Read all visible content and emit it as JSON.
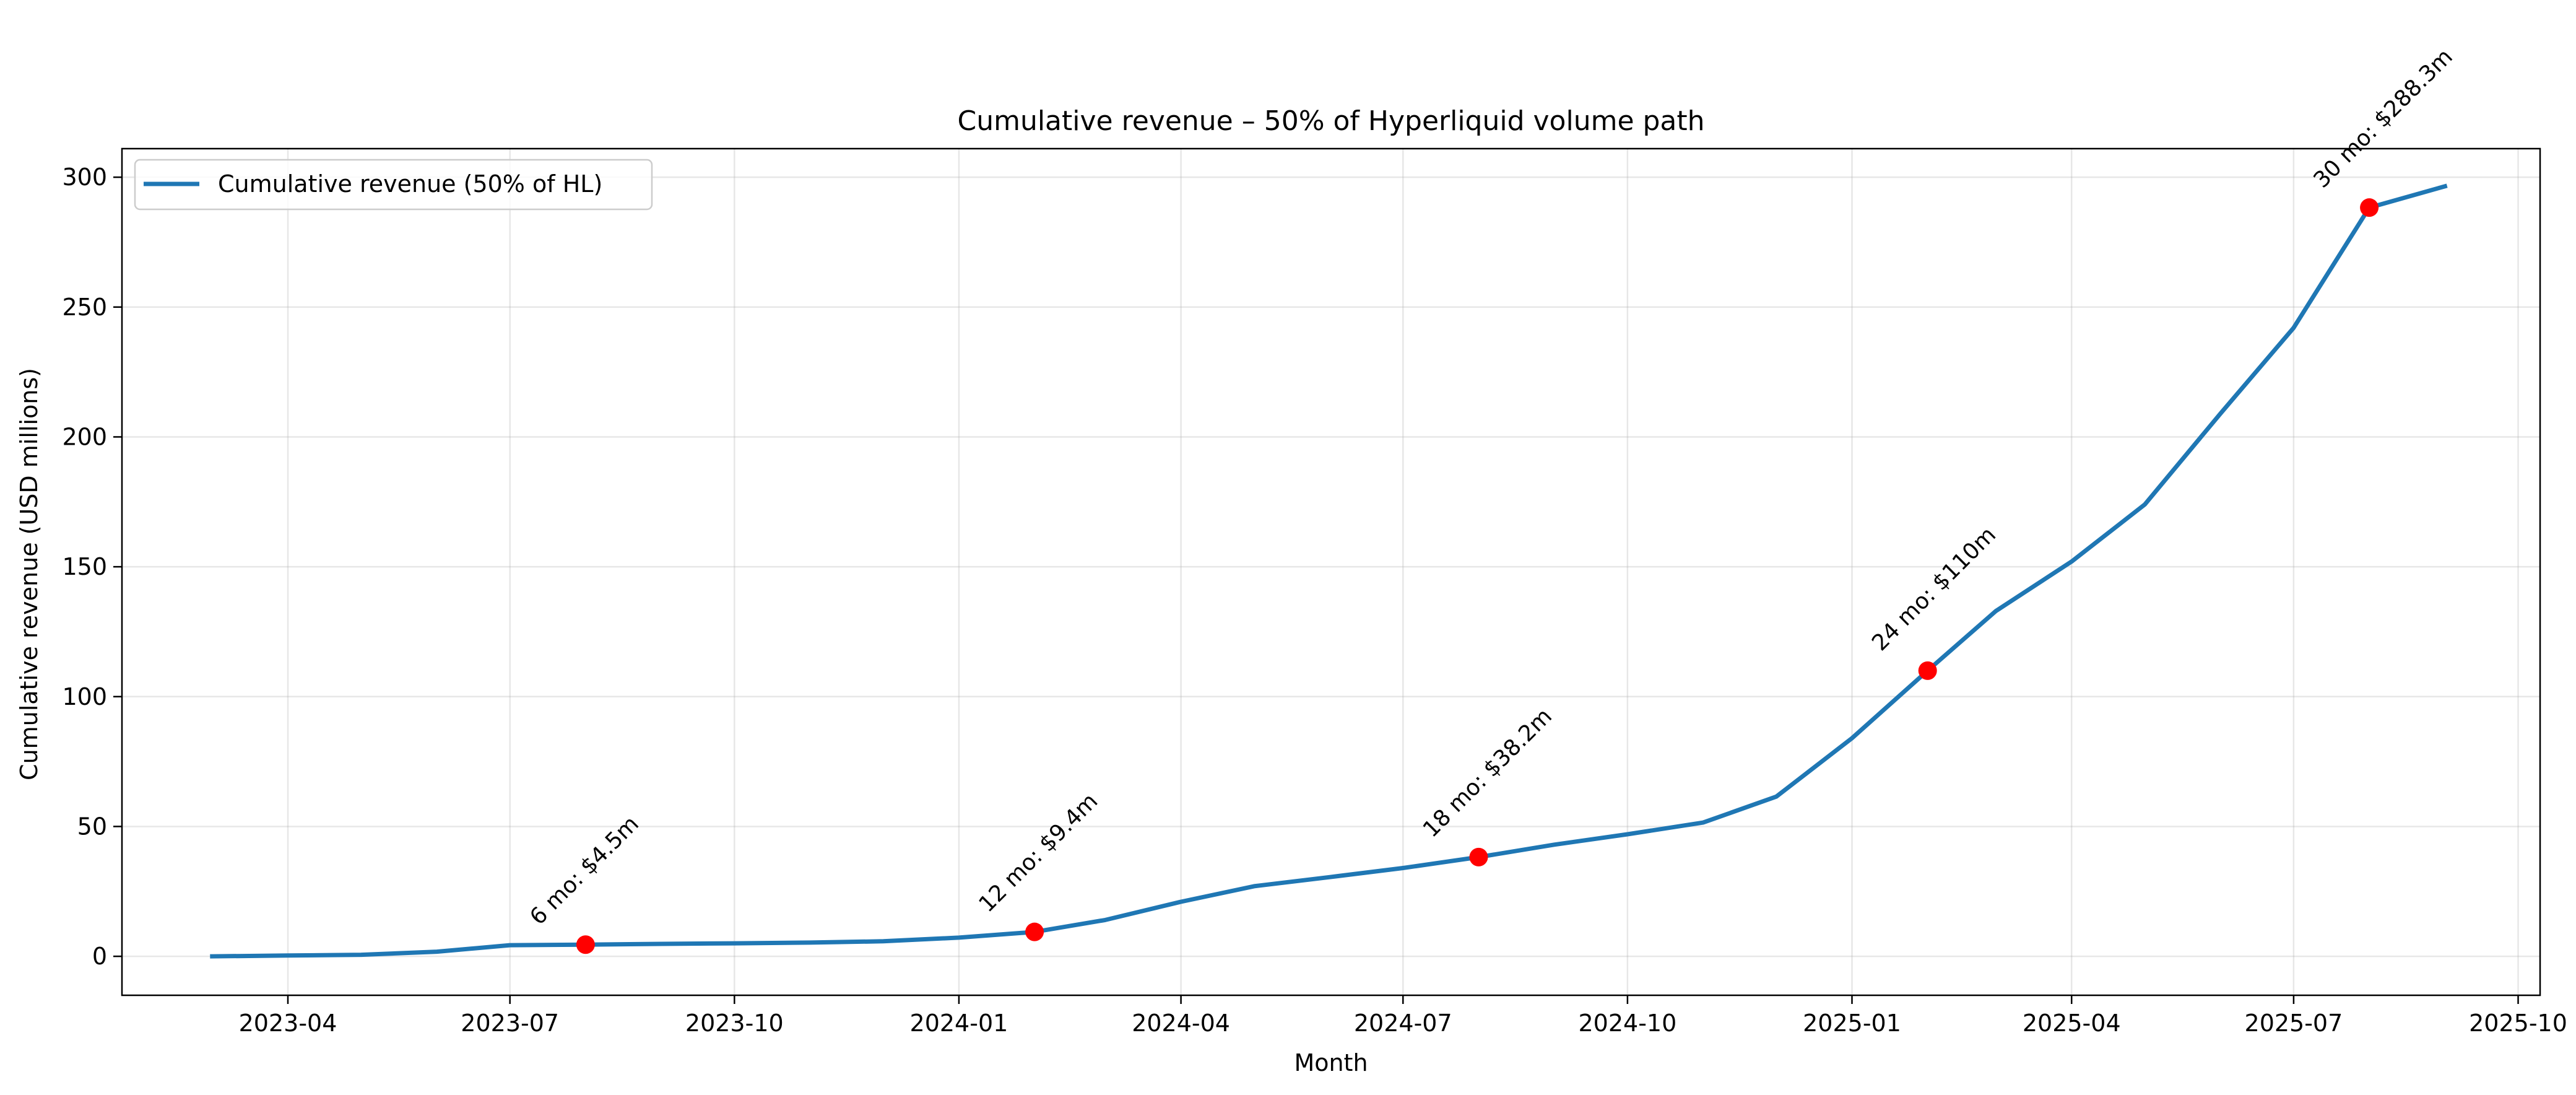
{
  "chart_data": {
    "type": "line",
    "title": "Cumulative revenue – 50% of Hyperliquid volume path",
    "xlabel": "Month",
    "ylabel": "Cumulative revenue (USD millions)",
    "xlim": [
      "2023-01-23",
      "2025-10-10"
    ],
    "ylim": [
      -15,
      311
    ],
    "x_ticks": [
      "2023-04",
      "2023-07",
      "2023-10",
      "2024-01",
      "2024-04",
      "2024-07",
      "2024-10",
      "2025-01",
      "2025-04",
      "2025-07",
      "2025-10"
    ],
    "y_ticks": [
      0,
      50,
      100,
      150,
      200,
      250,
      300
    ],
    "grid": true,
    "legend_position": "upper-left",
    "series": [
      {
        "name": "Cumulative revenue (50% of HL)",
        "color": "#1f77b4",
        "x": [
          "2023-03-01",
          "2023-04-01",
          "2023-05-01",
          "2023-06-01",
          "2023-07-01",
          "2023-08-01",
          "2023-09-01",
          "2023-10-01",
          "2023-11-01",
          "2023-12-01",
          "2024-01-01",
          "2024-02-01",
          "2024-03-01",
          "2024-04-01",
          "2024-05-01",
          "2024-06-01",
          "2024-07-01",
          "2024-08-01",
          "2024-09-01",
          "2024-10-01",
          "2024-11-01",
          "2024-12-01",
          "2025-01-01",
          "2025-02-01",
          "2025-03-01",
          "2025-04-01",
          "2025-05-01",
          "2025-06-01",
          "2025-07-01",
          "2025-08-01",
          "2025-09-01"
        ],
        "values": [
          0.0,
          0.3,
          0.6,
          1.8,
          4.3,
          4.5,
          4.8,
          5.0,
          5.3,
          5.8,
          7.2,
          9.4,
          14.0,
          21.0,
          27.0,
          30.5,
          34.0,
          38.2,
          43.0,
          47.0,
          51.5,
          61.5,
          84.0,
          110.0,
          133.0,
          152.0,
          174.0,
          209.0,
          242.0,
          288.3,
          296.5
        ]
      }
    ],
    "highlight_points": {
      "color": "#ff0000",
      "points": [
        {
          "x": "2023-08-01",
          "y": 4.5,
          "label": "6 mo: $4.5m"
        },
        {
          "x": "2024-02-01",
          "y": 9.4,
          "label": "12 mo: $9.4m"
        },
        {
          "x": "2024-08-01",
          "y": 38.2,
          "label": "18 mo: $38.2m"
        },
        {
          "x": "2025-02-01",
          "y": 110.0,
          "label": "24 mo: $110m"
        },
        {
          "x": "2025-08-01",
          "y": 288.3,
          "label": "30 mo: $288.3m"
        }
      ]
    }
  }
}
